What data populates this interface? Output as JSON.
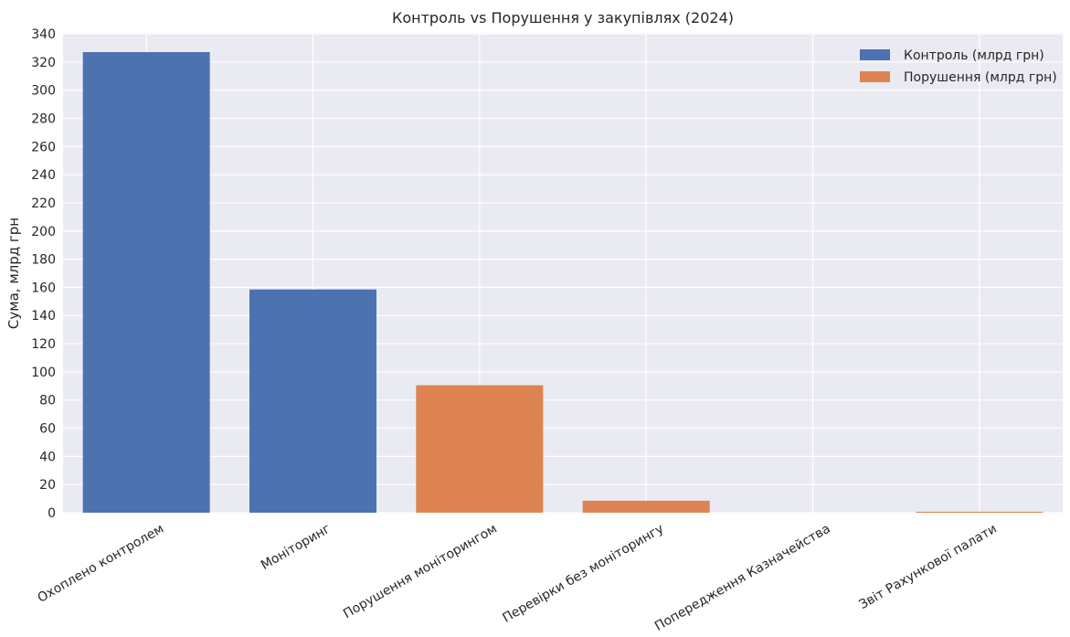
{
  "chart_data": {
    "type": "bar",
    "title": "Контроль vs Порушення у закупівлях (2024)",
    "xlabel": "",
    "ylabel": "Сума, млрд грн",
    "ylim": [
      0,
      340
    ],
    "yticks": [
      0,
      20,
      40,
      60,
      80,
      100,
      120,
      140,
      160,
      180,
      200,
      220,
      240,
      260,
      280,
      300,
      320,
      340
    ],
    "grid": true,
    "legend_placement": "top-right",
    "categories": [
      "Охоплено контролем",
      "Моніторинг",
      "Порушення моніторингом",
      "Перевірки без моніторингу",
      "Попередження Казначейства",
      "Звіт Рахункової палати"
    ],
    "series": [
      {
        "name": "Контроль (млрд грн)",
        "color": "#4c72b0",
        "values": [
          327,
          158.5,
          null,
          null,
          null,
          null
        ]
      },
      {
        "name": "Порушення (млрд грн)",
        "color": "#dd8452",
        "values": [
          null,
          null,
          90.5,
          8.5,
          0,
          0.7
        ]
      }
    ]
  },
  "colors": {
    "plot_background": "#eaeaf2",
    "grid": "#ffffff"
  }
}
